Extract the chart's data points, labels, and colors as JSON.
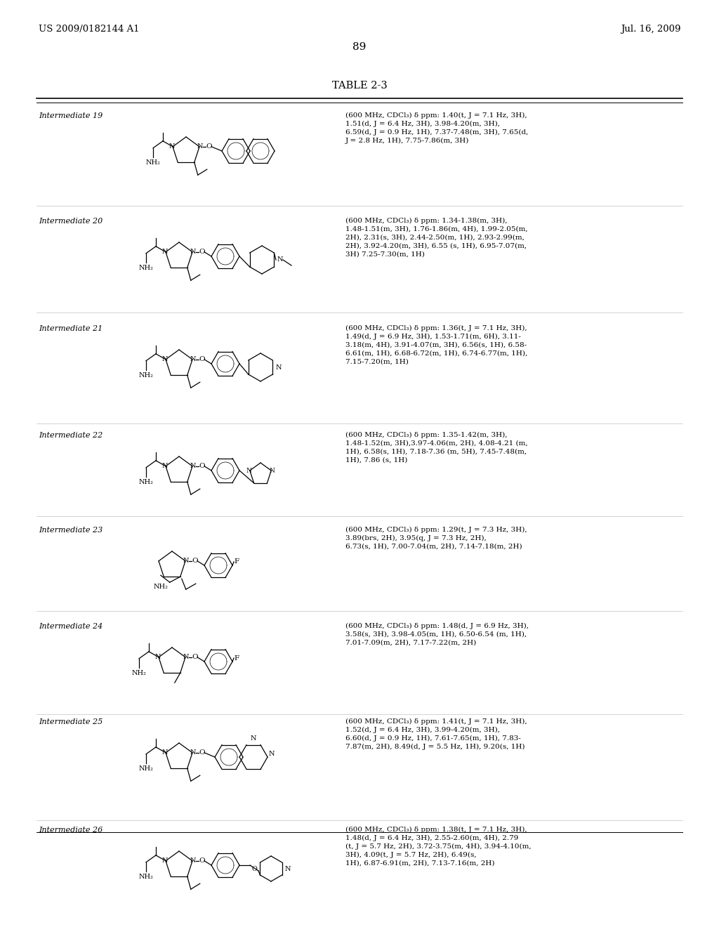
{
  "header_left": "US 2009/0182144 A1",
  "header_right": "Jul. 16, 2009",
  "page_number": "89",
  "table_title": "TABLE 2-3",
  "background_color": "#ffffff",
  "text_color": "#000000",
  "rows": [
    {
      "label": "Intermediate 19",
      "nmr": "(600 MHz, CDCl₃) δ ppm: 1.40(t, J = 7.1 Hz, 3H),\n1.51(d, J = 6.4 Hz, 3H), 3.98-4.20(m, 3H),\n6.59(d, J = 0.9 Hz, 1H), 7.37-7.48(m, 3H), 7.65(d,\nJ = 2.8 Hz, 1H), 7.75-7.86(m, 3H)"
    },
    {
      "label": "Intermediate 20",
      "nmr": "(600 MHz, CDCl₃) δ ppm: 1.34-1.38(m, 3H),\n1.48-1.51(m, 3H), 1.76-1.86(m, 4H), 1.99-2.05(m,\n2H), 2.31(s, 3H), 2.44-2.50(m, 1H), 2.93-2.99(m,\n2H), 3.92-4.20(m, 3H), 6.55 (s, 1H), 6.95-7.07(m,\n3H) 7.25-7.30(m, 1H)"
    },
    {
      "label": "Intermediate 21",
      "nmr": "(600 MHz, CDCl₃) δ ppm: 1.36(t, J = 7.1 Hz, 3H),\n1.49(d, J = 6.9 Hz, 3H), 1.53-1.71(m, 6H), 3.11-\n3.18(m, 4H), 3.91-4.07(m, 3H), 6.56(s, 1H), 6.58-\n6.61(m, 1H), 6.68-6.72(m, 1H), 6.74-6.77(m, 1H),\n7.15-7.20(m, 1H)"
    },
    {
      "label": "Intermediate 22",
      "nmr": "(600 MHz, CDCl₃) δ ppm: 1.35-1.42(m, 3H),\n1.48-1.52(m, 3H),3.97-4.06(m, 2H), 4.08-4.21 (m,\n1H), 6.58(s, 1H), 7.18-7.36 (m, 5H), 7.45-7.48(m,\n1H), 7.86 (s, 1H)"
    },
    {
      "label": "Intermediate 23",
      "nmr": "(600 MHz, CDCl₃) δ ppm: 1.29(t, J = 7.3 Hz, 3H),\n3.89(brs, 2H), 3.95(q, J = 7.3 Hz, 2H),\n6.73(s, 1H), 7.00-7.04(m, 2H), 7.14-7.18(m, 2H)"
    },
    {
      "label": "Intermediate 24",
      "nmr": "(600 MHz, CDCl₃) δ ppm: 1.48(d, J = 6.9 Hz, 3H),\n3.58(s, 3H), 3.98-4.05(m, 1H), 6.50-6.54 (m, 1H),\n7.01-7.09(m, 2H), 7.17-7.22(m, 2H)"
    },
    {
      "label": "Intermediate 25",
      "nmr": "(600 MHz, CDCl₃) δ ppm: 1.41(t, J = 7.1 Hz, 3H),\n1.52(d, J = 6.4 Hz, 3H), 3.99-4.20(m, 3H),\n6.60(d, J = 0.9 Hz, 1H), 7.61-7.65(m, 1H), 7.83-\n7.87(m, 2H), 8.49(d, J = 5.5 Hz, 1H), 9.20(s, 1H)"
    },
    {
      "label": "Intermediate 26",
      "nmr": "(600 MHz, CDCl₃) δ ppm: 1.38(t, J = 7.1 Hz, 3H),\n1.48(d, J = 6.4 Hz, 3H), 2.55-2.60(m, 4H), 2.79\n(t, J = 5.7 Hz, 2H), 3.72-3.75(m, 4H), 3.94-4.10(m,\n3H), 4.09(t, J = 5.7 Hz, 2H), 6.49(s,\n1H), 6.87-6.91(m, 2H), 7.13-7.16(m, 2H)"
    }
  ]
}
